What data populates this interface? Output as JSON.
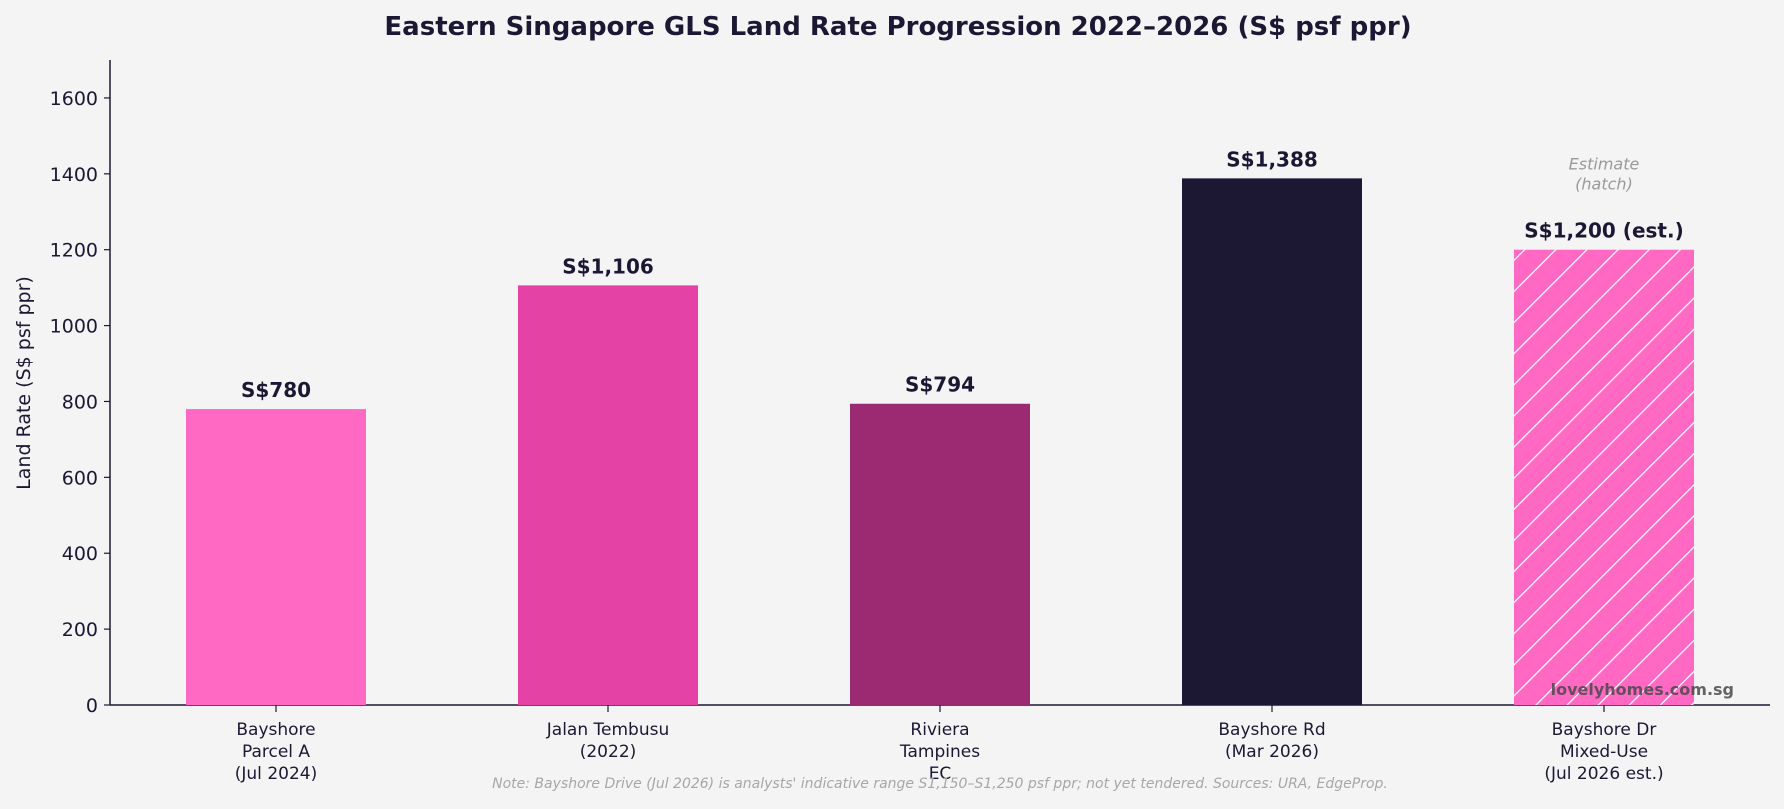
{
  "chart_data": {
    "type": "bar",
    "title": "Eastern Singapore GLS Land Rate Progression 2022–2026 (S$ psf ppr)",
    "xlabel": "",
    "ylabel": "Land Rate (S$ psf ppr)",
    "ylim": [
      0,
      1700
    ],
    "yticks": [
      "0",
      "200",
      "400",
      "600",
      "800",
      "1000",
      "1200",
      "1400",
      "1600"
    ],
    "grid": false,
    "categories": [
      [
        "Bayshore",
        "Parcel A",
        "(Jul 2024)"
      ],
      [
        "Jalan Tembusu",
        "(2022)"
      ],
      [
        "Riviera",
        "Tampines",
        "EC"
      ],
      [
        "Bayshore Rd",
        "(Mar 2026)"
      ],
      [
        "Bayshore Dr",
        "Mixed-Use",
        "(Jul 2026 est.)"
      ]
    ],
    "values": [
      780,
      1106,
      794,
      1388,
      1200
    ],
    "data_labels": [
      "S$780",
      "S$1,106",
      "S$794",
      "S$1,388",
      "S$1,200 (est.)"
    ],
    "colors": [
      "#ff69c4",
      "#e542a6",
      "#9b2a72",
      "#1c1833",
      "#ff69c4"
    ],
    "hatched": [
      false,
      false,
      false,
      false,
      true
    ],
    "annotation": [
      "Estimate",
      "(hatch)"
    ],
    "note": "Note: Bayshore Drive (Jul 2026) is analysts' indicative range S1,150–S1,250 psf ppr; not yet tendered. Sources: URA, EdgeProp.",
    "watermark": "lovelyhomes.com.sg"
  }
}
